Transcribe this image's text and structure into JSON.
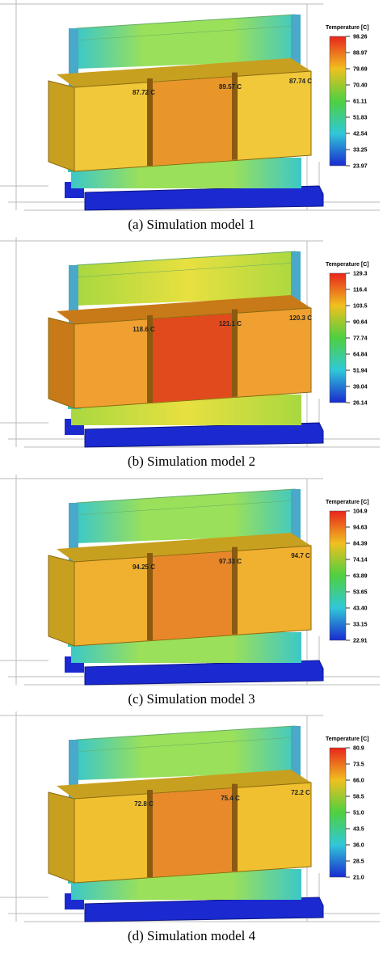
{
  "panels": [
    {
      "legend_title": "Temperature [C]",
      "legend_ticks": [
        "98.26",
        "88.97",
        "79.69",
        "70.40",
        "61.11",
        "51.83",
        "42.54",
        "33.25",
        "23.97"
      ],
      "point_labels": [
        "87.72 C",
        "89.57 C",
        "87.74 C"
      ],
      "caption": "(a) Simulation model 1"
    },
    {
      "legend_title": "Temperature [C]",
      "legend_ticks": [
        "129.3",
        "116.4",
        "103.5",
        "90.64",
        "77.74",
        "64.84",
        "51.94",
        "39.04",
        "26.14"
      ],
      "point_labels": [
        "118.6 C",
        "121.1 C",
        "120.3 C"
      ],
      "caption": "(b) Simulation model 2"
    },
    {
      "legend_title": "Temperature [C]",
      "legend_ticks": [
        "104.9",
        "94.63",
        "84.39",
        "74.14",
        "63.89",
        "53.65",
        "43.40",
        "33.15",
        "22.91"
      ],
      "point_labels": [
        "94.25 C",
        "97.33 C",
        "94.7 C"
      ],
      "caption": "(c) Simulation model 3"
    },
    {
      "legend_title": "Temperature [C]",
      "legend_ticks": [
        "80.9",
        "73.5",
        "66.0",
        "58.5",
        "51.0",
        "43.5",
        "36.0",
        "28.5",
        "21.0"
      ],
      "point_labels": [
        "72.8 C",
        "75.4 C",
        "72.2 C"
      ],
      "caption": "(d) Simulation model 4"
    }
  ]
}
